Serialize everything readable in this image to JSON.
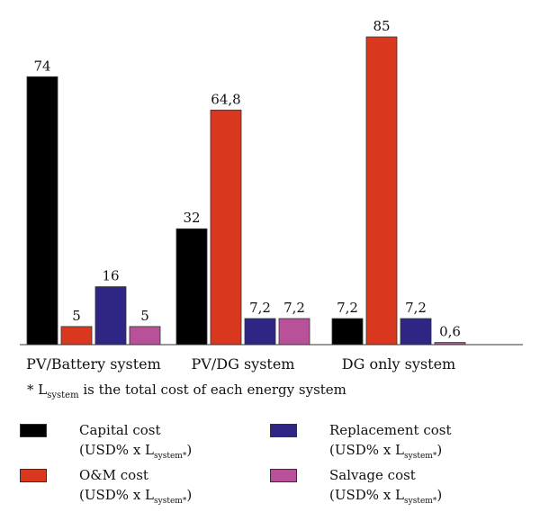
{
  "chart_data": {
    "type": "bar",
    "categories": [
      "PV/Battery system",
      "PV/DG system",
      "DG only system"
    ],
    "series": [
      {
        "name": "Capital cost",
        "unit": "(USD% x L",
        "unit_sub": "system*",
        "unit_end": ")",
        "color": "#000000",
        "values": [
          74,
          32,
          7.2
        ],
        "labels": [
          "74",
          "32",
          "7,2"
        ]
      },
      {
        "name": "O&M cost",
        "unit": "(USD% x L",
        "unit_sub": "system*",
        "unit_end": ")",
        "color": "#d9381e",
        "values": [
          5,
          64.8,
          85
        ],
        "labels": [
          "5",
          "64,8",
          "85"
        ]
      },
      {
        "name": "Replacement cost",
        "unit": "(USD% x L",
        "unit_sub": "system*",
        "unit_end": ")",
        "color": "#2e2585",
        "values": [
          16,
          7.2,
          7.2
        ],
        "labels": [
          "16",
          "7,2",
          "7,2"
        ]
      },
      {
        "name": "Salvage cost",
        "unit": "(USD% x L",
        "unit_sub": "system*",
        "unit_end": ")",
        "color": "#b8509a",
        "values": [
          5,
          7.2,
          0.6
        ],
        "labels": [
          "5",
          "7,2",
          "0,6"
        ]
      }
    ],
    "ylim": [
      0,
      85
    ],
    "grid": false,
    "legend_position": "bottom"
  },
  "footnote": {
    "prefix": "* L",
    "sub": "system",
    "suffix": " is the total cost of each energy system"
  }
}
